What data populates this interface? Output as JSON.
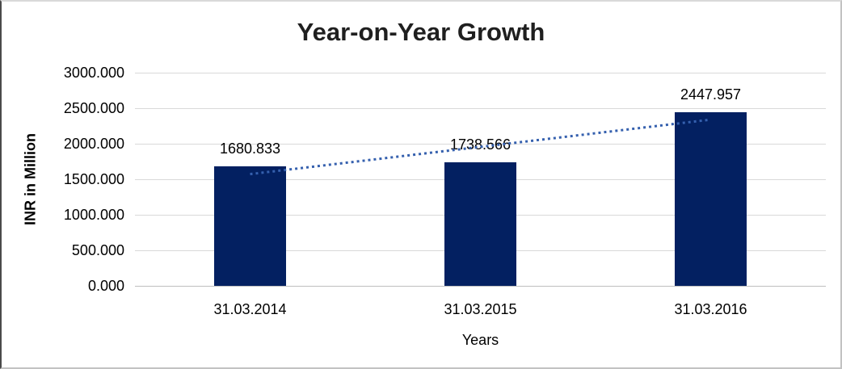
{
  "chart_data": {
    "type": "bar",
    "title": "Year-on-Year Growth",
    "categories": [
      "31.03.2014",
      "31.03.2015",
      "31.03.2016"
    ],
    "values": [
      1680.833,
      1738.566,
      2447.957
    ],
    "data_labels": [
      "1680.833",
      "1738.566",
      "2447.957"
    ],
    "xlabel": "Years",
    "ylabel": "INR in Million",
    "ylim": [
      0,
      3000
    ],
    "yticks": [
      "3000.000",
      "2500.000",
      "2000.000",
      "1500.000",
      "1000.000",
      "500.000",
      "0.000"
    ],
    "grid": true,
    "legend": "none",
    "trendline": {
      "type": "linear",
      "style": "dotted"
    },
    "colors": {
      "bar": "#032061",
      "trendline": "#3560AE",
      "gridline": "#D9D9D9",
      "axis_line": "#BFBFBF",
      "title_text": "#1F1F1F",
      "text": "#000000"
    }
  }
}
